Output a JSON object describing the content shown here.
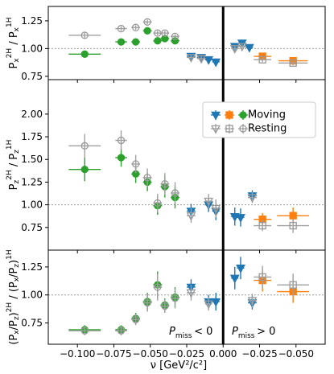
{
  "chart_data": {
    "type": "scatter",
    "xlabel": "ν [GeV²/c²]",
    "x_ticks": [
      -0.1,
      -0.075,
      -0.05,
      -0.025,
      0.0,
      0.025,
      0.05
    ],
    "x_tick_labels": [
      "−0.100",
      "−0.075",
      "−0.050",
      "−0.025",
      "0.000",
      "−0.025",
      "−0.050"
    ],
    "xlim": [
      -0.12,
      0.07
    ],
    "separator_x": 0.0,
    "annotations": {
      "left": "P_miss < 0",
      "right": "P_miss > 0"
    },
    "legend": {
      "placement": "center-right of middle panel",
      "rows": [
        {
          "label": "Moving",
          "markers": [
            "tri_down",
            "square",
            "circle"
          ],
          "colors": [
            "#1f77b4",
            "#ff7f0e",
            "#2ca02c"
          ],
          "filled": true
        },
        {
          "label": "Resting",
          "markers": [
            "tri_down",
            "square",
            "circle"
          ],
          "colors": [
            "#999999",
            "#999999",
            "#999999"
          ],
          "filled": false
        }
      ]
    },
    "panels": [
      {
        "ylabel": "P_x^{2H} / P_x^{1H}",
        "ylim": [
          0.72,
          1.38
        ],
        "yticks": [
          0.75,
          1.0,
          1.25
        ],
        "ytick_labels": [
          "0.75",
          "1.00",
          "1.25"
        ],
        "ref_line": 1.0,
        "series": [
          {
            "name": "Moving",
            "marker": "circle",
            "color": "#2ca02c",
            "filled": true,
            "points": [
              {
                "x": -0.095,
                "y": 0.95,
                "xerr": 0.011,
                "yerr": 0.01
              },
              {
                "x": -0.07,
                "y": 1.06,
                "xerr": 0.004,
                "yerr": 0.015
              },
              {
                "x": -0.06,
                "y": 1.06,
                "xerr": 0.003,
                "yerr": 0.015
              },
              {
                "x": -0.052,
                "y": 1.16,
                "xerr": 0.003,
                "yerr": 0.015
              },
              {
                "x": -0.045,
                "y": 1.07,
                "xerr": 0.003,
                "yerr": 0.015
              },
              {
                "x": -0.04,
                "y": 1.09,
                "xerr": 0.003,
                "yerr": 0.015
              },
              {
                "x": -0.033,
                "y": 1.07,
                "xerr": 0.003,
                "yerr": 0.015
              }
            ]
          },
          {
            "name": "Resting",
            "marker": "circle",
            "color": "#999999",
            "filled": false,
            "points": [
              {
                "x": -0.095,
                "y": 1.12,
                "xerr": 0.011,
                "yerr": 0.03
              },
              {
                "x": -0.07,
                "y": 1.18,
                "xerr": 0.004,
                "yerr": 0.02
              },
              {
                "x": -0.06,
                "y": 1.19,
                "xerr": 0.003,
                "yerr": 0.02
              },
              {
                "x": -0.052,
                "y": 1.24,
                "xerr": 0.003,
                "yerr": 0.02
              },
              {
                "x": -0.045,
                "y": 1.14,
                "xerr": 0.003,
                "yerr": 0.02
              },
              {
                "x": -0.04,
                "y": 1.14,
                "xerr": 0.003,
                "yerr": 0.02
              },
              {
                "x": -0.033,
                "y": 1.11,
                "xerr": 0.003,
                "yerr": 0.02
              }
            ]
          },
          {
            "name": "Moving",
            "marker": "tri_down",
            "color": "#1f77b4",
            "filled": true,
            "points": [
              {
                "x": -0.022,
                "y": 0.93,
                "xerr": 0.003,
                "yerr": 0.02
              },
              {
                "x": -0.015,
                "y": 0.92,
                "xerr": 0.003,
                "yerr": 0.02
              },
              {
                "x": -0.01,
                "y": 0.9,
                "xerr": 0.0025,
                "yerr": 0.03
              },
              {
                "x": -0.005,
                "y": 0.88,
                "xerr": 0.0025,
                "yerr": 0.03
              },
              {
                "x": 0.008,
                "y": 1.02,
                "xerr": 0.0025,
                "yerr": 0.02
              },
              {
                "x": 0.013,
                "y": 1.05,
                "xerr": 0.0025,
                "yerr": 0.02
              },
              {
                "x": 0.018,
                "y": 1.01,
                "xerr": 0.0025,
                "yerr": 0.02
              }
            ]
          },
          {
            "name": "Resting",
            "marker": "tri_down",
            "color": "#999999",
            "filled": false,
            "points": [
              {
                "x": -0.022,
                "y": 0.92,
                "xerr": 0.003,
                "yerr": 0.02
              },
              {
                "x": -0.015,
                "y": 0.91,
                "xerr": 0.003,
                "yerr": 0.02
              },
              {
                "x": 0.008,
                "y": 1.0,
                "xerr": 0.0025,
                "yerr": 0.02
              },
              {
                "x": 0.013,
                "y": 1.02,
                "xerr": 0.0025,
                "yerr": 0.02
              }
            ]
          },
          {
            "name": "Moving",
            "marker": "square",
            "color": "#ff7f0e",
            "filled": true,
            "points": [
              {
                "x": 0.027,
                "y": 0.93,
                "xerr": 0.006,
                "yerr": 0.02
              },
              {
                "x": 0.048,
                "y": 0.89,
                "xerr": 0.01,
                "yerr": 0.02
              }
            ]
          },
          {
            "name": "Resting",
            "marker": "square",
            "color": "#999999",
            "filled": false,
            "points": [
              {
                "x": 0.027,
                "y": 0.9,
                "xerr": 0.006,
                "yerr": 0.02
              },
              {
                "x": 0.048,
                "y": 0.87,
                "xerr": 0.01,
                "yerr": 0.02
              }
            ]
          }
        ]
      },
      {
        "ylabel": "P_z^{2H} / P_z^{1H}",
        "ylim": [
          0.5,
          2.38
        ],
        "yticks": [
          0.75,
          1.0,
          1.25,
          1.5,
          1.75,
          2.0
        ],
        "ytick_labels": [
          "0.75",
          "1.00",
          "1.25",
          "1.50",
          "1.75",
          "2.00"
        ],
        "ref_line": 1.0,
        "series": [
          {
            "name": "Moving",
            "marker": "circle",
            "color": "#2ca02c",
            "filled": true,
            "points": [
              {
                "x": -0.095,
                "y": 1.39,
                "xerr": 0.011,
                "yerr": 0.13
              },
              {
                "x": -0.07,
                "y": 1.52,
                "xerr": 0.004,
                "yerr": 0.1
              },
              {
                "x": -0.06,
                "y": 1.34,
                "xerr": 0.003,
                "yerr": 0.1
              },
              {
                "x": -0.052,
                "y": 1.25,
                "xerr": 0.003,
                "yerr": 0.1
              },
              {
                "x": -0.045,
                "y": 0.99,
                "xerr": 0.003,
                "yerr": 0.1
              },
              {
                "x": -0.04,
                "y": 1.2,
                "xerr": 0.003,
                "yerr": 0.12
              },
              {
                "x": -0.033,
                "y": 1.08,
                "xerr": 0.003,
                "yerr": 0.12
              }
            ]
          },
          {
            "name": "Resting",
            "marker": "circle",
            "color": "#999999",
            "filled": false,
            "points": [
              {
                "x": -0.095,
                "y": 1.65,
                "xerr": 0.011,
                "yerr": 0.13
              },
              {
                "x": -0.07,
                "y": 1.71,
                "xerr": 0.004,
                "yerr": 0.11
              },
              {
                "x": -0.06,
                "y": 1.45,
                "xerr": 0.003,
                "yerr": 0.1
              },
              {
                "x": -0.052,
                "y": 1.3,
                "xerr": 0.003,
                "yerr": 0.1
              },
              {
                "x": -0.045,
                "y": 1.02,
                "xerr": 0.003,
                "yerr": 0.1
              },
              {
                "x": -0.04,
                "y": 1.23,
                "xerr": 0.003,
                "yerr": 0.12
              },
              {
                "x": -0.033,
                "y": 1.13,
                "xerr": 0.003,
                "yerr": 0.12
              }
            ]
          },
          {
            "name": "Moving",
            "marker": "tri_down",
            "color": "#1f77b4",
            "filled": true,
            "points": [
              {
                "x": -0.022,
                "y": 0.93,
                "xerr": 0.003,
                "yerr": 0.08
              },
              {
                "x": -0.01,
                "y": 1.0,
                "xerr": 0.0025,
                "yerr": 0.08
              },
              {
                "x": -0.005,
                "y": 0.93,
                "xerr": 0.0025,
                "yerr": 0.1
              },
              {
                "x": 0.008,
                "y": 0.87,
                "xerr": 0.0025,
                "yerr": 0.1
              },
              {
                "x": 0.012,
                "y": 0.86,
                "xerr": 0.0025,
                "yerr": 0.1
              },
              {
                "x": 0.02,
                "y": 1.1,
                "xerr": 0.003,
                "yerr": 0.06
              }
            ]
          },
          {
            "name": "Resting",
            "marker": "tri_down",
            "color": "#999999",
            "filled": false,
            "points": [
              {
                "x": -0.022,
                "y": 0.88,
                "xerr": 0.003,
                "yerr": 0.08
              },
              {
                "x": -0.01,
                "y": 1.04,
                "xerr": 0.0025,
                "yerr": 0.08
              },
              {
                "x": -0.005,
                "y": 0.96,
                "xerr": 0.0025,
                "yerr": 0.1
              },
              {
                "x": 0.02,
                "y": 1.08,
                "xerr": 0.003,
                "yerr": 0.06
              }
            ]
          },
          {
            "name": "Moving",
            "marker": "square",
            "color": "#ff7f0e",
            "filled": true,
            "points": [
              {
                "x": 0.027,
                "y": 0.84,
                "xerr": 0.006,
                "yerr": 0.07
              },
              {
                "x": 0.048,
                "y": 0.88,
                "xerr": 0.011,
                "yerr": 0.09
              }
            ]
          },
          {
            "name": "Resting",
            "marker": "square",
            "color": "#999999",
            "filled": false,
            "points": [
              {
                "x": 0.027,
                "y": 0.77,
                "xerr": 0.006,
                "yerr": 0.06
              },
              {
                "x": 0.048,
                "y": 0.77,
                "xerr": 0.011,
                "yerr": 0.08
              }
            ]
          }
        ]
      },
      {
        "ylabel": "(P_x/P_z)^{2H} / (P_x/P_z)^{1H}",
        "ylim": [
          0.56,
          1.4
        ],
        "yticks": [
          0.75,
          1.0,
          1.25
        ],
        "ytick_labels": [
          "0.75",
          "1.00",
          "1.25"
        ],
        "ref_line": 1.0,
        "series": [
          {
            "name": "Moving",
            "marker": "circle",
            "color": "#2ca02c",
            "filled": true,
            "points": [
              {
                "x": -0.095,
                "y": 0.69,
                "xerr": 0.011,
                "yerr": 0.04
              },
              {
                "x": -0.07,
                "y": 0.69,
                "xerr": 0.004,
                "yerr": 0.04
              },
              {
                "x": -0.06,
                "y": 0.79,
                "xerr": 0.003,
                "yerr": 0.05
              },
              {
                "x": -0.052,
                "y": 0.94,
                "xerr": 0.003,
                "yerr": 0.08
              },
              {
                "x": -0.045,
                "y": 1.09,
                "xerr": 0.003,
                "yerr": 0.12
              },
              {
                "x": -0.04,
                "y": 0.91,
                "xerr": 0.003,
                "yerr": 0.06
              },
              {
                "x": -0.033,
                "y": 0.98,
                "xerr": 0.003,
                "yerr": 0.09
              }
            ]
          },
          {
            "name": "Resting",
            "marker": "circle",
            "color": "#999999",
            "filled": false,
            "points": [
              {
                "x": -0.095,
                "y": 0.68,
                "xerr": 0.011,
                "yerr": 0.04
              },
              {
                "x": -0.07,
                "y": 0.68,
                "xerr": 0.004,
                "yerr": 0.04
              },
              {
                "x": -0.06,
                "y": 0.78,
                "xerr": 0.003,
                "yerr": 0.05
              },
              {
                "x": -0.052,
                "y": 0.93,
                "xerr": 0.003,
                "yerr": 0.08
              },
              {
                "x": -0.045,
                "y": 1.07,
                "xerr": 0.003,
                "yerr": 0.12
              },
              {
                "x": -0.04,
                "y": 0.9,
                "xerr": 0.003,
                "yerr": 0.06
              },
              {
                "x": -0.033,
                "y": 0.97,
                "xerr": 0.003,
                "yerr": 0.09
              }
            ]
          },
          {
            "name": "Moving",
            "marker": "tri_down",
            "color": "#1f77b4",
            "filled": true,
            "points": [
              {
                "x": -0.022,
                "y": 1.07,
                "xerr": 0.003,
                "yerr": 0.07
              },
              {
                "x": -0.01,
                "y": 0.94,
                "xerr": 0.0025,
                "yerr": 0.06
              },
              {
                "x": -0.005,
                "y": 0.94,
                "xerr": 0.0025,
                "yerr": 0.08
              },
              {
                "x": 0.008,
                "y": 1.15,
                "xerr": 0.0025,
                "yerr": 0.1
              },
              {
                "x": 0.012,
                "y": 1.24,
                "xerr": 0.0025,
                "yerr": 0.1
              },
              {
                "x": 0.02,
                "y": 0.93,
                "xerr": 0.003,
                "yerr": 0.06
              }
            ]
          },
          {
            "name": "Resting",
            "marker": "tri_down",
            "color": "#999999",
            "filled": false,
            "points": [
              {
                "x": -0.022,
                "y": 1.02,
                "xerr": 0.003,
                "yerr": 0.07
              },
              {
                "x": -0.01,
                "y": 0.92,
                "xerr": 0.0025,
                "yerr": 0.06
              },
              {
                "x": 0.02,
                "y": 0.95,
                "xerr": 0.003,
                "yerr": 0.06
              }
            ]
          },
          {
            "name": "Moving",
            "marker": "square",
            "color": "#ff7f0e",
            "filled": true,
            "points": [
              {
                "x": 0.027,
                "y": 1.13,
                "xerr": 0.006,
                "yerr": 0.1
              },
              {
                "x": 0.048,
                "y": 1.03,
                "xerr": 0.011,
                "yerr": 0.1
              }
            ]
          },
          {
            "name": "Resting",
            "marker": "square",
            "color": "#999999",
            "filled": false,
            "points": [
              {
                "x": 0.027,
                "y": 1.16,
                "xerr": 0.006,
                "yerr": 0.1
              },
              {
                "x": 0.048,
                "y": 1.09,
                "xerr": 0.011,
                "yerr": 0.1
              }
            ]
          }
        ]
      }
    ]
  }
}
